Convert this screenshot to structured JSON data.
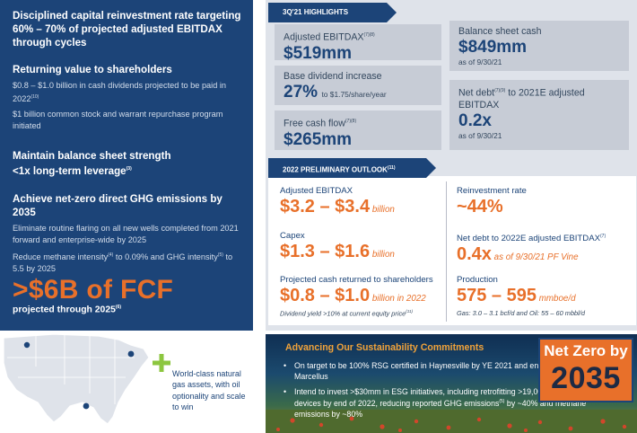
{
  "left": {
    "b1_heading": "Disciplined capital reinvestment rate targeting 60% – 70% of projected adjusted EBITDAX through cycles",
    "b2_heading": "Returning value to shareholders",
    "b2_text1": "$0.8 – $1.0 billion in cash dividends projected to be paid in 2022",
    "b2_text1_note": "(10)",
    "b2_text2": "$1 billion common stock and warrant repurchase program initiated",
    "b3_heading_line1": "Maintain balance sheet strength",
    "b3_heading_line2": "<1x long-term leverage",
    "b3_heading_note": "(3)",
    "b4_heading": "Achieve net-zero direct GHG emissions by 2035",
    "b4_text1": "Eliminate routine flaring on all new wells completed from 2021 forward and enterprise-wide by 2025",
    "b4_text2_a": "Reduce methane intensity",
    "b4_text2_note_a": "(4)",
    "b4_text2_b": " to 0.09% and GHG intensity",
    "b4_text2_note_b": "(5)",
    "b4_text2_c": " to 5.5 by 2025",
    "fcf_big": ">$6B of FCF",
    "fcf_sub": "projected through 2025",
    "fcf_sub_note": "(6)"
  },
  "assets": {
    "text": "World-class natural gas assets, with oil optionality and scale to win"
  },
  "highlights": {
    "tag": "3Q'21 HIGHLIGHTS",
    "adj_label": "Adjusted EBITDAX",
    "adj_note": "(7)(8)",
    "adj_value": "$519mm",
    "cash_label": "Balance sheet cash",
    "cash_value": "$849mm",
    "cash_asof": "as of 9/30/21",
    "div_label": "Base dividend increase",
    "div_value": "27%",
    "div_small": "to $1.75/share/year",
    "debt_label_a": "Net debt",
    "debt_note": "(7)(9)",
    "debt_label_b": " to 2021E adjusted EBITDAX",
    "debt_value": "0.2x",
    "debt_asof": "as of 9/30/21",
    "fcf_label": "Free cash flow",
    "fcf_note": "(7)(8)",
    "fcf_value": "$265mm"
  },
  "outlook": {
    "tag": "2022 PRELIMINARY OUTLOOK",
    "tag_note": "(11)",
    "ebitdax_label": "Adjusted EBITDAX",
    "ebitdax_value": "$3.2 – $3.4",
    "ebitdax_unit": " billion",
    "reinv_label": "Reinvestment rate",
    "reinv_value": "~44%",
    "capex_label": "Capex",
    "capex_value": "$1.3 – $1.6",
    "capex_unit": " billion",
    "netdebt_label": "Net debt to 2022E adjusted EBITDAX",
    "netdebt_note": "(7)",
    "netdebt_value": "0.4x",
    "netdebt_unit": " as of 9/30/21 PF Vine",
    "cash_label": "Projected cash returned to shareholders",
    "cash_value": "$0.8 – $1.0",
    "cash_unit": " billion in 2022",
    "cash_note": "Dividend yield >10% at current equity price",
    "cash_note_ref": "(11)",
    "prod_label": "Production",
    "prod_value": "575 – 595",
    "prod_unit": " mmboe/d",
    "prod_note": "Gas: 3.0 – 3.1 bcf/d and Oil: 55 – 60 mbbl/d"
  },
  "sustainability": {
    "title": "Advancing Our Sustainability Commitments",
    "bullet1": "On target to be 100% RSG certified in Haynesville by YE 2021 and end of 2Q'22 in Marcellus",
    "bullet2_a": "Intend to invest >$30mm in ESG initiatives, including retrofitting >19,000 pneumatic devices by end of 2022, reducing reported GHG emissions",
    "bullet2_note": "(5)",
    "bullet2_b": " by ~40% and methane emissions by ~80%",
    "badge_top": "Net Zero by",
    "badge_year": "2035"
  },
  "colors": {
    "navy": "#1c4478",
    "orange": "#e8702a",
    "gray_panel": "#dfe3ea",
    "card": "#c7ccd6",
    "green": "#8cc63f"
  }
}
